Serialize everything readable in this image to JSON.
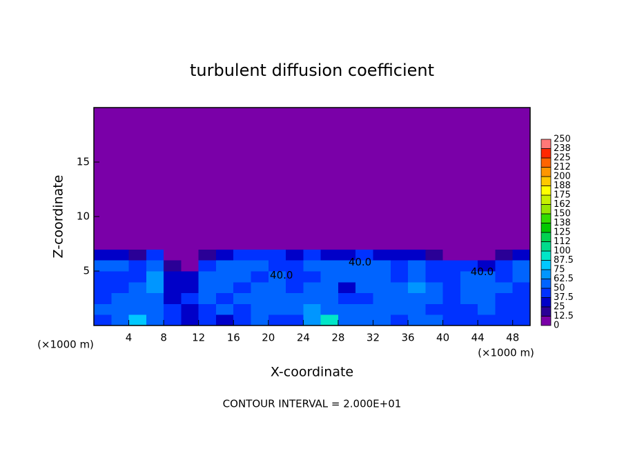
{
  "chart_data": {
    "type": "heatmap",
    "title": "turbulent diffusion coefficient",
    "xlabel": "X-coordinate",
    "ylabel": "Z-coordinate",
    "xunit": "(×1000 m)",
    "yunit": "(×1000 m)",
    "footnote": "CONTOUR INTERVAL = 2.000E+01",
    "xlim": [
      0,
      50
    ],
    "ylim": [
      0,
      20
    ],
    "xticks": [
      4,
      8,
      12,
      16,
      20,
      24,
      28,
      32,
      36,
      40,
      44,
      48
    ],
    "yticks": [
      5,
      10,
      15
    ],
    "x_edges": [
      0,
      2,
      4,
      6,
      8,
      10,
      12,
      14,
      16,
      18,
      20,
      22,
      24,
      26,
      28,
      30,
      32,
      34,
      36,
      38,
      40,
      42,
      44,
      46,
      48,
      50
    ],
    "z_edges": [
      0,
      1,
      2,
      3,
      4,
      5,
      6,
      7,
      20
    ],
    "values": [
      [
        45,
        55,
        80,
        50,
        45,
        35,
        40,
        35,
        40,
        50,
        45,
        40,
        70,
        90,
        60,
        55,
        50,
        45,
        55,
        50,
        45,
        40,
        40,
        45,
        45
      ],
      [
        50,
        50,
        60,
        55,
        40,
        35,
        45,
        50,
        45,
        55,
        50,
        55,
        65,
        60,
        55,
        50,
        50,
        55,
        50,
        45,
        40,
        45,
        50,
        45,
        40
      ],
      [
        45,
        50,
        55,
        60,
        35,
        40,
        50,
        45,
        55,
        60,
        55,
        50,
        55,
        50,
        40,
        45,
        55,
        60,
        55,
        50,
        45,
        50,
        55,
        45,
        40
      ],
      [
        40,
        45,
        50,
        70,
        30,
        35,
        55,
        50,
        45,
        50,
        55,
        45,
        50,
        55,
        35,
        50,
        55,
        50,
        65,
        50,
        45,
        55,
        60,
        50,
        45
      ],
      [
        45,
        45,
        40,
        65,
        25,
        30,
        60,
        55,
        50,
        45,
        50,
        45,
        45,
        60,
        55,
        50,
        55,
        45,
        60,
        45,
        40,
        50,
        55,
        45,
        50
      ],
      [
        50,
        50,
        45,
        60,
        15,
        10,
        45,
        60,
        55,
        50,
        45,
        45,
        50,
        55,
        60,
        50,
        55,
        45,
        50,
        45,
        45,
        40,
        35,
        40,
        50
      ],
      [
        30,
        25,
        20,
        40,
        5,
        0,
        20,
        35,
        40,
        45,
        40,
        35,
        40,
        30,
        35,
        40,
        35,
        30,
        35,
        20,
        10,
        5,
        5,
        15,
        35
      ],
      [
        0,
        0,
        0,
        0,
        0,
        0,
        0,
        0,
        0,
        0,
        0,
        0,
        0,
        0,
        0,
        0,
        0,
        0,
        0,
        0,
        0,
        0,
        0,
        0,
        0
      ]
    ],
    "colorbar": {
      "levels": [
        0,
        12.5,
        25,
        37.5,
        50,
        62.5,
        75,
        87.5,
        100,
        {
          "value": 112.5,
          "label": "112"
        },
        125,
        {
          "value": 137.5,
          "label": "138"
        },
        150,
        {
          "value": 162.5,
          "label": "162"
        },
        175,
        {
          "value": 187.5,
          "label": "188"
        },
        200,
        {
          "value": 212.5,
          "label": "212"
        },
        225,
        {
          "value": 237.5,
          "label": "238"
        },
        250
      ],
      "colors": [
        "#7a00a8",
        "#2a0096",
        "#0000c8",
        "#0032ff",
        "#0064ff",
        "#0096ff",
        "#00c8ff",
        "#00e6c8",
        "#00dc8c",
        "#00d250",
        "#00c800",
        "#32dc00",
        "#96e600",
        "#c8f000",
        "#ffff00",
        "#ffc800",
        "#ff9600",
        "#ff6400",
        "#ff2800",
        "#ff7878"
      ]
    },
    "annotations": [
      {
        "text": "40.0",
        "x": 30.5,
        "z": 5.8
      },
      {
        "text": "40.0",
        "x": 21.5,
        "z": 4.6
      },
      {
        "text": "40.0",
        "x": 44.5,
        "z": 4.9
      }
    ]
  }
}
